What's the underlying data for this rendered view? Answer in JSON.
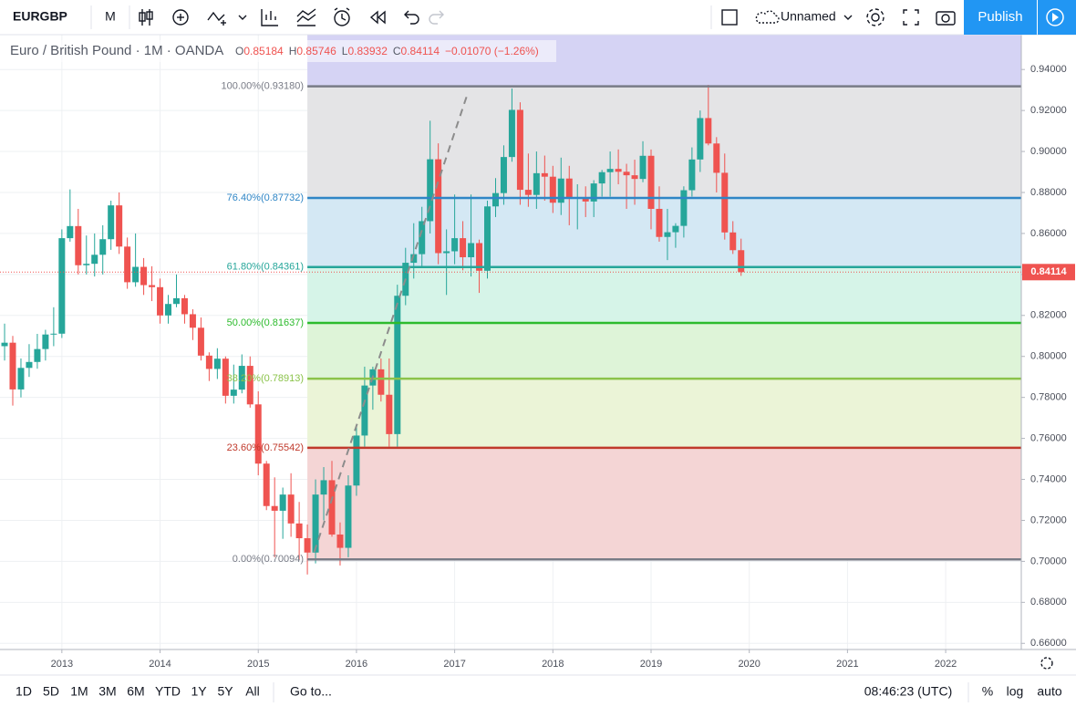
{
  "toolbar": {
    "symbol": "EURGBP",
    "interval": "M",
    "layout_name": "Unnamed",
    "publish": "Publish"
  },
  "bottom_bar": {
    "ranges": [
      "1D",
      "5D",
      "1M",
      "3M",
      "6M",
      "YTD",
      "1Y",
      "5Y",
      "All"
    ],
    "goto": "Go to...",
    "clock": "08:46:23 (UTC)",
    "percent": "%",
    "log": "log",
    "auto": "auto"
  },
  "chart_data": {
    "type": "candlestick",
    "title": "Euro / British Pound · 1M · OANDA",
    "ohlc_prefixes": [
      "O",
      "H",
      "L",
      "C"
    ],
    "change": "−0.01070 (−1.26%)",
    "x": [
      2012.4167,
      2012.5,
      2012.5833,
      2012.6667,
      2012.75,
      2012.8333,
      2012.9167,
      2013,
      2013.0833,
      2013.1667,
      2013.25,
      2013.3333,
      2013.4167,
      2013.5,
      2013.5833,
      2013.6667,
      2013.75,
      2013.8333,
      2013.9167,
      2014,
      2014.0833,
      2014.1667,
      2014.25,
      2014.3333,
      2014.4167,
      2014.5,
      2014.5833,
      2014.6667,
      2014.75,
      2014.8333,
      2014.9167,
      2015,
      2015.0833,
      2015.1667,
      2015.25,
      2015.3333,
      2015.4167,
      2015.5,
      2015.5833,
      2015.6667,
      2015.75,
      2015.8333,
      2015.9167,
      2016,
      2016.0833,
      2016.1667,
      2016.25,
      2016.3333,
      2016.4167,
      2016.5,
      2016.5833,
      2016.6667,
      2016.75,
      2016.8333,
      2016.9167,
      2017,
      2017.0833,
      2017.1667,
      2017.25,
      2017.3333,
      2017.4167,
      2017.5,
      2017.5833,
      2017.6667,
      2017.75,
      2017.8333,
      2017.9167,
      2018,
      2018.0833,
      2018.1667,
      2018.25,
      2018.3333,
      2018.4167,
      2018.5,
      2018.5833,
      2018.6667,
      2018.75,
      2018.8333,
      2018.9167,
      2019,
      2019.0833,
      2019.1667,
      2019.25,
      2019.3333,
      2019.4167,
      2019.5,
      2019.5833,
      2019.6667,
      2019.75,
      2019.8333,
      2019.9167
    ],
    "open": [
      0.805,
      0.8067,
      0.7839,
      0.7944,
      0.7973,
      0.8036,
      0.8107,
      0.8111,
      0.8577,
      0.8636,
      0.8445,
      0.8452,
      0.8496,
      0.8572,
      0.8737,
      0.8536,
      0.8362,
      0.8437,
      0.8348,
      0.8338,
      0.82,
      0.8256,
      0.8284,
      0.8206,
      0.814,
      0.8004,
      0.7939,
      0.7989,
      0.7808,
      0.7838,
      0.7954,
      0.7766,
      0.7477,
      0.727,
      0.7247,
      0.7326,
      0.7185,
      0.7113,
      0.7043,
      0.7326,
      0.7396,
      0.7131,
      0.7066,
      0.737,
      0.7614,
      0.7858,
      0.7937,
      0.7813,
      0.7621,
      0.8296,
      0.8457,
      0.8499,
      0.866,
      0.8962,
      0.8504,
      0.8513,
      0.8577,
      0.8484,
      0.8553,
      0.8418,
      0.8732,
      0.8797,
      0.8973,
      0.9203,
      0.8813,
      0.8788,
      0.8894,
      0.8877,
      0.875,
      0.8868,
      0.8773,
      0.8774,
      0.8756,
      0.8844,
      0.8899,
      0.8915,
      0.8901,
      0.8884,
      0.8866,
      0.8979,
      0.872,
      0.8583,
      0.8606,
      0.8637,
      0.8811,
      0.8961,
      0.9163,
      0.9039,
      0.8896,
      0.8605,
      0.85184
    ],
    "high": [
      0.816,
      0.81,
      0.799,
      0.806,
      0.811,
      0.813,
      0.824,
      0.862,
      0.8815,
      0.872,
      0.859,
      0.86,
      0.864,
      0.876,
      0.88,
      0.858,
      0.86,
      0.848,
      0.844,
      0.838,
      0.83,
      0.84,
      0.83,
      0.823,
      0.819,
      0.802,
      0.804,
      0.8,
      0.796,
      0.801,
      0.8,
      0.783,
      0.749,
      0.741,
      0.736,
      0.743,
      0.729,
      0.718,
      0.74,
      0.746,
      0.749,
      0.719,
      0.742,
      0.766,
      0.795,
      0.795,
      0.799,
      0.799,
      0.835,
      0.853,
      0.865,
      0.873,
      0.915,
      0.904,
      0.862,
      0.879,
      0.866,
      0.879,
      0.857,
      0.876,
      0.887,
      0.903,
      0.9307,
      0.924,
      0.899,
      0.9,
      0.898,
      0.893,
      0.897,
      0.893,
      0.884,
      0.883,
      0.886,
      0.891,
      0.9,
      0.901,
      0.894,
      0.896,
      0.905,
      0.901,
      0.883,
      0.872,
      0.865,
      0.883,
      0.902,
      0.92,
      0.9325,
      0.907,
      0.899,
      0.866,
      0.85746
    ],
    "low": [
      0.798,
      0.776,
      0.78,
      0.79,
      0.794,
      0.798,
      0.805,
      0.809,
      0.856,
      0.84,
      0.84,
      0.839,
      0.84,
      0.852,
      0.85,
      0.833,
      0.834,
      0.83,
      0.827,
      0.816,
      0.816,
      0.824,
      0.816,
      0.808,
      0.798,
      0.788,
      0.789,
      0.777,
      0.777,
      0.782,
      0.775,
      0.742,
      0.725,
      0.702,
      0.711,
      0.712,
      0.701,
      0.6936,
      0.699,
      0.72,
      0.712,
      0.698,
      0.702,
      0.732,
      0.756,
      0.774,
      0.778,
      0.756,
      0.756,
      0.825,
      0.838,
      0.844,
      0.86,
      0.845,
      0.83,
      0.845,
      0.842,
      0.839,
      0.831,
      0.838,
      0.868,
      0.874,
      0.895,
      0.874,
      0.873,
      0.872,
      0.876,
      0.87,
      0.869,
      0.864,
      0.862,
      0.868,
      0.868,
      0.878,
      0.878,
      0.884,
      0.872,
      0.874,
      0.885,
      0.862,
      0.856,
      0.847,
      0.853,
      0.858,
      0.878,
      0.89,
      0.903,
      0.88,
      0.857,
      0.85,
      0.83932
    ],
    "close": [
      0.8067,
      0.7839,
      0.7944,
      0.7973,
      0.8036,
      0.8107,
      0.8111,
      0.8577,
      0.8636,
      0.8445,
      0.8452,
      0.8496,
      0.8572,
      0.8737,
      0.8536,
      0.8362,
      0.8437,
      0.8348,
      0.8338,
      0.82,
      0.8256,
      0.8284,
      0.8206,
      0.814,
      0.8004,
      0.7939,
      0.7989,
      0.7808,
      0.7838,
      0.7954,
      0.7766,
      0.7477,
      0.727,
      0.7247,
      0.7326,
      0.7185,
      0.7113,
      0.7043,
      0.7326,
      0.7396,
      0.7131,
      0.7066,
      0.737,
      0.7614,
      0.7858,
      0.7937,
      0.7813,
      0.7621,
      0.8296,
      0.8457,
      0.8499,
      0.866,
      0.8962,
      0.8504,
      0.8513,
      0.8577,
      0.8484,
      0.8553,
      0.8418,
      0.8732,
      0.8797,
      0.8973,
      0.9203,
      0.8813,
      0.8788,
      0.8894,
      0.8877,
      0.875,
      0.8868,
      0.8773,
      0.8774,
      0.8756,
      0.8844,
      0.8899,
      0.8915,
      0.8901,
      0.8884,
      0.8866,
      0.8979,
      0.872,
      0.8583,
      0.8606,
      0.8637,
      0.8811,
      0.8961,
      0.9163,
      0.9039,
      0.8896,
      0.8605,
      0.85184,
      0.84114
    ],
    "up_color": "#26a69a",
    "down_color": "#ef5350",
    "xlim": [
      2012.37,
      2022.77
    ],
    "xticks": [
      2013,
      2014,
      2015,
      2016,
      2017,
      2018,
      2019,
      2020,
      2021,
      2022
    ],
    "ylim": [
      0.657,
      0.957
    ],
    "yticks": [
      {
        "value": 0.66,
        "label": "0.66000"
      },
      {
        "value": 0.68,
        "label": "0.68000"
      },
      {
        "value": 0.7,
        "label": "0.70000"
      },
      {
        "value": 0.72,
        "label": "0.72000"
      },
      {
        "value": 0.74,
        "label": "0.74000"
      },
      {
        "value": 0.76,
        "label": "0.76000"
      },
      {
        "value": 0.78,
        "label": "0.78000"
      },
      {
        "value": 0.8,
        "label": "0.80000"
      },
      {
        "value": 0.82,
        "label": "0.82000"
      },
      {
        "value": 0.84,
        "label": "0.84000"
      },
      {
        "value": 0.86,
        "label": "0.86000"
      },
      {
        "value": 0.88,
        "label": "0.88000"
      },
      {
        "value": 0.9,
        "label": "0.90000"
      },
      {
        "value": 0.92,
        "label": "0.92000"
      },
      {
        "value": 0.94,
        "label": "0.94000"
      }
    ],
    "grid": true,
    "fibonacci": {
      "start_x": 2015.5,
      "top_fill": "#d5d3f4",
      "levels": [
        {
          "value": 0.9318,
          "label": "100.00%(0.93180)",
          "color": "#787b86",
          "fill": "#e4e4e6"
        },
        {
          "value": 0.87732,
          "label": "76.40%(0.87732)",
          "color": "#2f86c6",
          "fill": "#d4e8f4"
        },
        {
          "value": 0.84361,
          "label": "61.80%(0.84361)",
          "color": "#26a69a",
          "fill": "#d6f4e8"
        },
        {
          "value": 0.81637,
          "label": "50.00%(0.81637)",
          "color": "#2dbb2d",
          "fill": "#def4d8"
        },
        {
          "value": 0.78913,
          "label": "38.20%(0.78913)",
          "color": "#8bc34a",
          "fill": "#ebf4d7"
        },
        {
          "value": 0.75542,
          "label": "23.60%(0.75542)",
          "color": "#c0392b",
          "fill": "#f4d5d5"
        },
        {
          "value": 0.70094,
          "label": "0.00%(0.70094)",
          "color": "#787b86"
        }
      ]
    },
    "trend_line": {
      "x": [
        2015.57,
        2017.13
      ],
      "y": [
        0.7046,
        0.928
      ],
      "color": "#8c8c8c"
    }
  }
}
